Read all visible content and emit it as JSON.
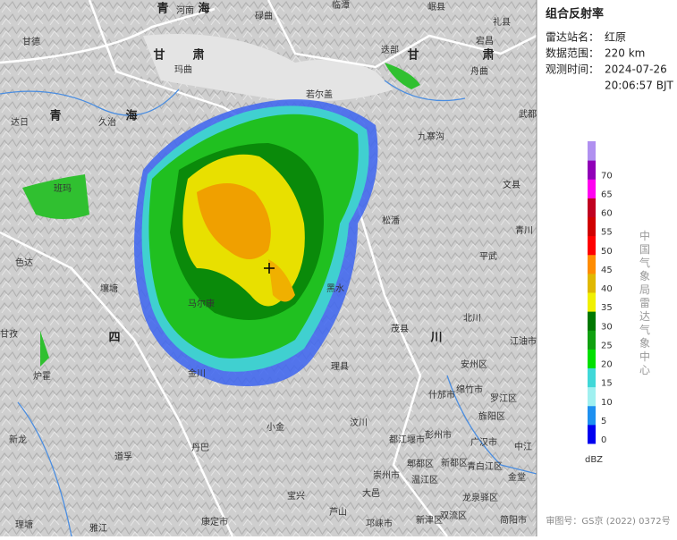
{
  "panel": {
    "title": "组合反射率",
    "fields": [
      {
        "label": "雷达站名：",
        "value": [
          "红原"
        ]
      },
      {
        "label": "数据范围：",
        "value": [
          "220 km"
        ]
      },
      {
        "label": "观测时间：",
        "value": [
          "2024-07-26",
          "20:06:57 BJT"
        ]
      }
    ]
  },
  "colorbar": {
    "ticks": [
      0,
      5,
      10,
      15,
      20,
      25,
      30,
      35,
      40,
      45,
      50,
      55,
      60,
      65,
      70
    ],
    "colors": [
      "#0000f0",
      "#1e90f0",
      "#a0f0f0",
      "#40d8d8",
      "#00e000",
      "#10a010",
      "#007800",
      "#f0f000",
      "#e0b800",
      "#ff8c00",
      "#ff0000",
      "#d00000",
      "#c00020",
      "#ff00f0",
      "#9000b8",
      "#b090f0"
    ],
    "unit": "dBZ"
  },
  "agency": "中国气象局雷达气象中心",
  "footer": "审图号：GS京 (2022) 0372号",
  "map_labels": [
    "青",
    "河南",
    "海",
    "碌曲",
    "临潭",
    "岷县",
    "礼县",
    "宕昌",
    "甘德",
    "甘",
    "肃",
    "玛曲",
    "迭部",
    "甘",
    "肃",
    "舟曲",
    "若尔盖",
    "武都",
    "达日",
    "青",
    "海",
    "久治",
    "九寨沟",
    "文县",
    "班玛",
    "松潘",
    "青川",
    "色达",
    "平武",
    "壤塘",
    "黑水",
    "马尔康",
    "北川",
    "茂县",
    "川",
    "甘孜",
    "四",
    "江油市",
    "安州区",
    "理县",
    "什邡市",
    "绵竹市",
    "罗江区",
    "炉霍",
    "金川",
    "旌阳区",
    "汶川",
    "小金",
    "彭州市",
    "广汉市",
    "中江",
    "新龙",
    "丹巴",
    "都江堰市",
    "郫都区",
    "新都区",
    "青白江区",
    "道孚",
    "崇州市",
    "温江区",
    "金堂",
    "龙泉驿区",
    "宝兴",
    "大邑",
    "芦山",
    "理塘",
    "雅江",
    "康定市",
    "邛崃市",
    "新津区",
    "双流区",
    "简阳市"
  ]
}
